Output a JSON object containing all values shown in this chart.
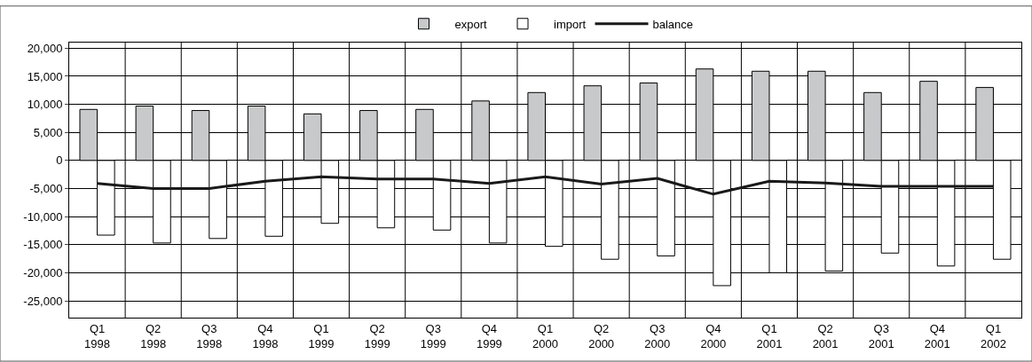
{
  "chart_data": {
    "type": "bar",
    "categories": [
      "Q1\n1998",
      "Q2\n1998",
      "Q3\n1998",
      "Q4\n1998",
      "Q1\n1999",
      "Q2\n1999",
      "Q3\n1999",
      "Q4\n1999",
      "Q1\n2000",
      "Q2\n2000",
      "Q3\n2000",
      "Q4\n2000",
      "Q1\n2001",
      "Q2\n2001",
      "Q3\n2001",
      "Q4\n2001",
      "Q1\n2002"
    ],
    "series": [
      {
        "name": "export",
        "color": "#c8c9cb",
        "values": [
          9100,
          9700,
          8900,
          9700,
          8300,
          8900,
          9100,
          10600,
          12100,
          13300,
          13800,
          16300,
          15900,
          15900,
          12100,
          14100,
          13000
        ]
      },
      {
        "name": "import",
        "color": "#ffffff",
        "values": [
          -13300,
          -14700,
          -13900,
          -13500,
          -11200,
          -12000,
          -12400,
          -14700,
          -15300,
          -17600,
          -17000,
          -22300,
          -20000,
          -19700,
          -16500,
          -18800,
          -17600
        ]
      },
      {
        "name": "balance",
        "type": "line",
        "color": "#1a1a1a",
        "values": [
          -4100,
          -5000,
          -5000,
          -3700,
          -2900,
          -3300,
          -3300,
          -4100,
          -2900,
          -4200,
          -3200,
          -6000,
          -3700,
          -4000,
          -4600,
          -4600,
          -4600
        ]
      }
    ],
    "ylim": [
      -28000,
      21000
    ],
    "yticks": [
      {
        "value": -25000,
        "label": "-25,000"
      },
      {
        "value": -20000,
        "label": "-20,000"
      },
      {
        "value": -15000,
        "label": "-15,000"
      },
      {
        "value": -10000,
        "label": "-10,000"
      },
      {
        "value": -5000,
        "label": "-5,000"
      },
      0,
      {
        "value": 5000,
        "label": "5,000"
      },
      {
        "value": 10000,
        "label": "10,000"
      },
      {
        "value": 15000,
        "label": "15,000"
      },
      {
        "value": 20000,
        "label": "20,000"
      }
    ],
    "grid": true,
    "legend": "top",
    "marker": "none",
    "line_style": "solid"
  }
}
